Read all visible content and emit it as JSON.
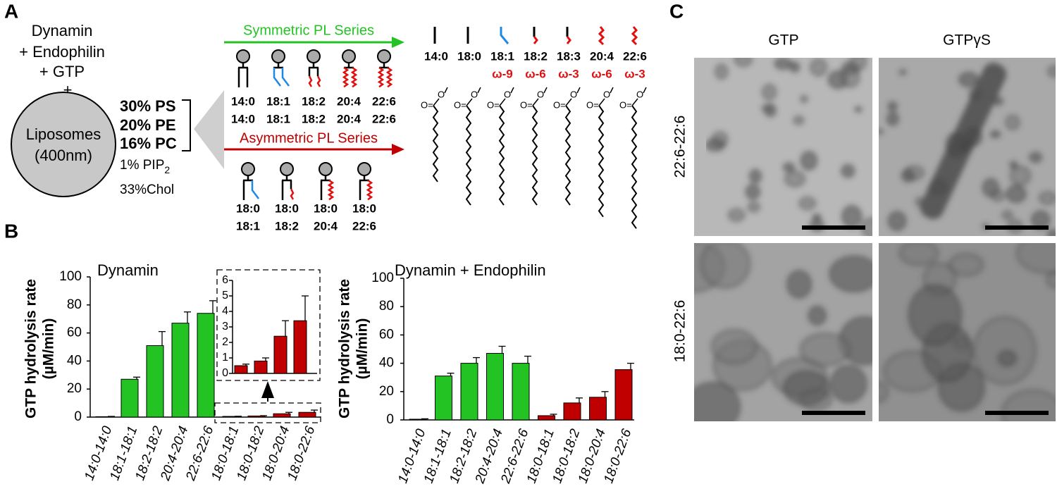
{
  "panel_a": {
    "letter": "A",
    "reaction": [
      "Dynamin",
      "+ Endophilin",
      "+ GTP",
      "+"
    ],
    "liposome": [
      "Liposomes",
      "(400nm)"
    ],
    "composition": [
      "30% PS",
      "20% PE",
      "16% PC"
    ],
    "pip": "1% PIP",
    "pip_sub": "2",
    "chol": "33%Chol",
    "symmetric_series": "Symmetric PL Series",
    "asymmetric_series": "Asymmetric PL Series",
    "symmetric_lipids": [
      [
        "14:0",
        "14:0"
      ],
      [
        "18:1",
        "18:1"
      ],
      [
        "18:2",
        "18:2"
      ],
      [
        "20:4",
        "20:4"
      ],
      [
        "22:6",
        "22:6"
      ]
    ],
    "asymmetric_lipids": [
      [
        "18:0",
        "18:1"
      ],
      [
        "18:0",
        "18:2"
      ],
      [
        "18:0",
        "20:4"
      ],
      [
        "18:0",
        "22:6"
      ]
    ],
    "chains": [
      {
        "name": "14:0"
      },
      {
        "name": "18:0"
      },
      {
        "name": "18:1",
        "omega": "ω-9"
      },
      {
        "name": "18:2",
        "omega": "ω-6"
      },
      {
        "name": "18:3",
        "omega": "ω-3"
      },
      {
        "name": "20:4",
        "omega": "ω-6"
      },
      {
        "name": "22:6",
        "omega": "ω-3"
      }
    ],
    "carbonyl": "O=",
    "ester_oxygen": "O"
  },
  "panel_b": {
    "letter": "B"
  },
  "chart_data": [
    {
      "type": "bar",
      "title": "Dynamin",
      "y_label": [
        "GTP hydrolysis rate",
        "(µM/min)"
      ],
      "categories": [
        "14:0-14:0",
        "18:1-18:1",
        "18:2-18:2",
        "20:4-20:4",
        "22:6-22:6",
        "18:0-18:1",
        "18:0-18:2",
        "18:0-20:4",
        "18:0-22:6"
      ],
      "values": [
        0.3,
        27,
        51,
        67,
        74,
        0.5,
        0.8,
        2.4,
        3.4
      ],
      "errors": [
        0.2,
        1.5,
        10,
        8,
        9,
        0.1,
        0.2,
        1,
        1.6
      ],
      "colors": [
        "#22c322",
        "#22c322",
        "#22c322",
        "#22c322",
        "#22c322",
        "#c00000",
        "#c00000",
        "#c00000",
        "#c00000"
      ],
      "ylim": [
        0,
        100
      ],
      "yticks": [
        0,
        20,
        40,
        60,
        80,
        100
      ]
    },
    {
      "type": "bar",
      "values": [
        0.5,
        0.8,
        2.4,
        3.4
      ],
      "errors": [
        0.1,
        0.2,
        1,
        1.6
      ],
      "colors": [
        "#c00000",
        "#c00000",
        "#c00000",
        "#c00000"
      ],
      "ylim": [
        0,
        6
      ],
      "yticks": [
        0,
        1,
        2,
        3,
        4,
        5,
        6
      ]
    },
    {
      "type": "bar",
      "title": "Dynamin + Endophilin",
      "y_label": [
        "GTP hydrolysis rate",
        "(µM/min)"
      ],
      "categories": [
        "14:0-14:0",
        "18:1-18:1",
        "18:2-18:2",
        "20:4-20:4",
        "22:6-22:6",
        "18:0-18:1",
        "18:0-18:2",
        "18:0-20:4",
        "18:0-22:6"
      ],
      "values": [
        0.5,
        31,
        40,
        47,
        40,
        3,
        12,
        16,
        35.5
      ],
      "errors": [
        0.3,
        2,
        4,
        5,
        5,
        1,
        3.5,
        4,
        4.5
      ],
      "colors": [
        "#22c322",
        "#22c322",
        "#22c322",
        "#22c322",
        "#22c322",
        "#c00000",
        "#c00000",
        "#c00000",
        "#c00000"
      ],
      "ylim": [
        0,
        100
      ],
      "yticks": [
        0,
        20,
        40,
        60,
        80,
        100
      ]
    }
  ],
  "panel_c": {
    "letter": "C",
    "columns": [
      "GTP",
      "GTPγS"
    ],
    "rows": [
      "22:6-22:6",
      "18:0-22:6"
    ]
  }
}
